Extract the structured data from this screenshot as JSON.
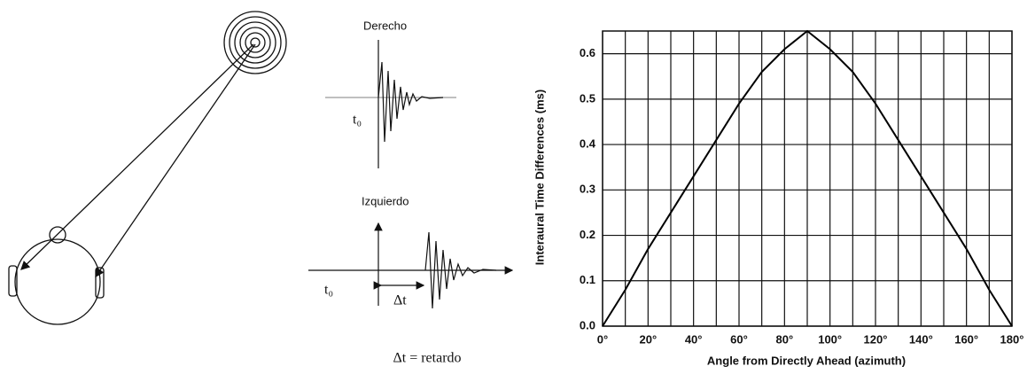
{
  "diagram": {
    "right_label": "Derecho",
    "right_time": "t₀",
    "left_label": "Izquierdo",
    "left_time": "t₀",
    "delay": "Δt",
    "caption": "Δt = retardo"
  },
  "chart_data": {
    "type": "line",
    "xlabel": "Angle from Directly Ahead (azimuth)",
    "ylabel": "Interaural Time Differences (ms)",
    "x": [
      0,
      10,
      20,
      30,
      40,
      50,
      60,
      70,
      80,
      90,
      100,
      110,
      120,
      130,
      140,
      150,
      160,
      170,
      180
    ],
    "series": [
      {
        "color": "#000000",
        "values": [
          0,
          0.08,
          0.17,
          0.25,
          0.33,
          0.41,
          0.49,
          0.56,
          0.61,
          0.65,
          0.61,
          0.56,
          0.49,
          0.41,
          0.33,
          0.25,
          0.17,
          0.08,
          0
        ]
      }
    ],
    "xlim": [
      0,
      180
    ],
    "ylim": [
      0,
      0.65
    ],
    "xticks": [
      {
        "value": 0,
        "label": "0°"
      },
      {
        "value": 20,
        "label": "20°"
      },
      {
        "value": 40,
        "label": "40°"
      },
      {
        "value": 60,
        "label": "60°"
      },
      {
        "value": 80,
        "label": "80°"
      },
      {
        "value": 100,
        "label": "100°"
      },
      {
        "value": 120,
        "label": "120°"
      },
      {
        "value": 140,
        "label": "140°"
      },
      {
        "value": 160,
        "label": "160°"
      },
      {
        "value": 180,
        "label": "180°"
      }
    ],
    "xgrid": [
      10,
      30,
      50,
      70,
      90,
      110,
      130,
      150,
      170
    ],
    "yticks": [
      {
        "value": 0,
        "label": "0.0"
      },
      0.1,
      0.2,
      0.3,
      0.4,
      0.5,
      0.6
    ],
    "grid": true
  }
}
